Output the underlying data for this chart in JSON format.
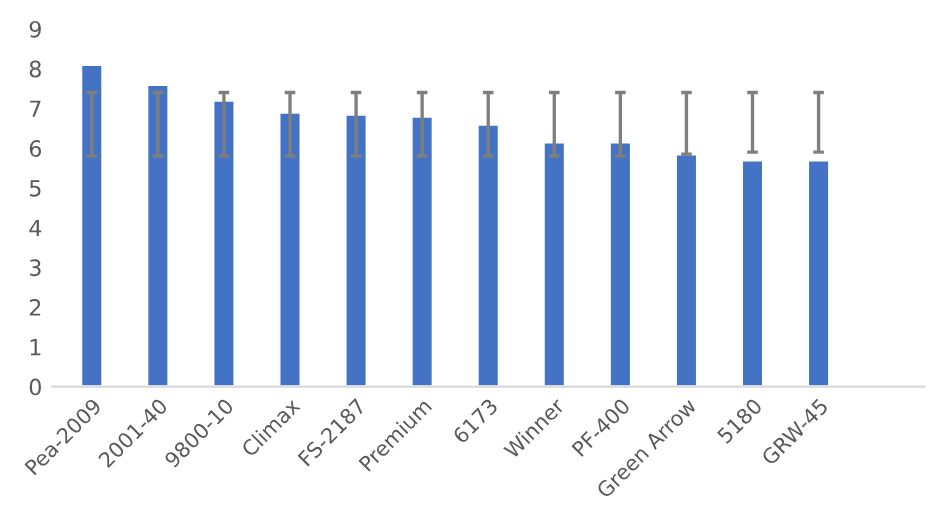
{
  "chart_data": {
    "type": "bar",
    "categories": [
      "Pea-2009",
      "2001-40",
      "9800-10",
      "Climax",
      "FS-2187",
      "Premium",
      "6173",
      "Winner",
      "PF-400",
      "Green Arrow",
      "5180",
      "GRW-45",
      null
    ],
    "values": [
      8.1,
      7.6,
      7.2,
      6.9,
      6.85,
      6.8,
      6.6,
      6.15,
      6.15,
      5.85,
      5.7,
      5.7,
      null
    ],
    "errors": [
      [
        5.8,
        7.4
      ],
      [
        5.8,
        7.4
      ],
      [
        5.8,
        7.4
      ],
      [
        5.8,
        7.4
      ],
      [
        5.8,
        7.4
      ],
      [
        5.8,
        7.4
      ],
      [
        5.8,
        7.4
      ],
      [
        5.8,
        7.4
      ],
      [
        5.8,
        7.4
      ],
      [
        5.85,
        7.4
      ],
      [
        5.9,
        7.4
      ],
      [
        5.9,
        7.4
      ],
      null
    ],
    "color": "#4472c4",
    "ylim": [
      0,
      9
    ],
    "yticks": [
      0,
      1,
      2,
      3,
      4,
      5,
      6,
      7,
      8,
      9
    ],
    "grid": false
  }
}
